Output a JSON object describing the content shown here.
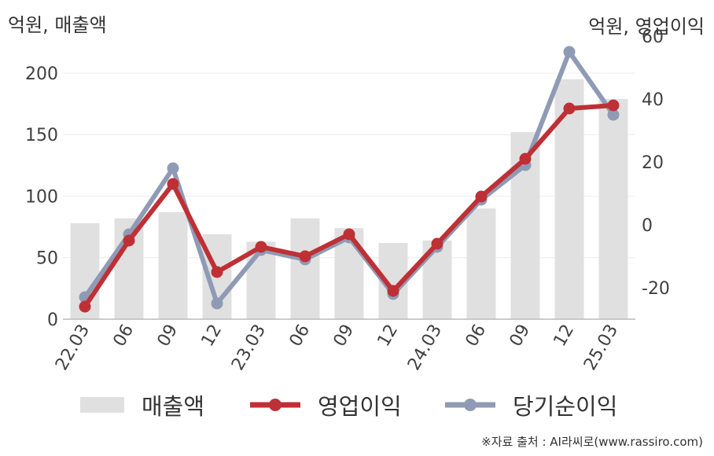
{
  "chart_data": {
    "type": "bar+line",
    "left_axis_title": "억원, 매출액",
    "right_axis_title": "억원, 영업이익",
    "categories": [
      "22.03",
      "06",
      "09",
      "12",
      "23.03",
      "06",
      "09",
      "12",
      "24.03",
      "06",
      "09",
      "12",
      "25.03"
    ],
    "left_axis": {
      "ylim": [
        0,
        230
      ],
      "ticks": [
        0,
        50,
        100,
        150,
        200
      ]
    },
    "right_axis": {
      "ylim": [
        -30,
        60
      ],
      "ticks": [
        -20,
        0,
        20,
        40,
        60
      ]
    },
    "series": [
      {
        "name": "매출액",
        "type": "bar",
        "axis": "left",
        "color": "#e0e0e0",
        "values": [
          78,
          82,
          87,
          69,
          63,
          82,
          74,
          62,
          64,
          90,
          152,
          195,
          179
        ]
      },
      {
        "name": "영업이익",
        "type": "line",
        "axis": "right",
        "color": "#be3035",
        "values": [
          -26,
          -5,
          13,
          -15,
          -7,
          -10,
          -3,
          -21,
          -6,
          9,
          21,
          37,
          38
        ]
      },
      {
        "name": "당기순이익",
        "type": "line",
        "axis": "right",
        "color": "#8f9bb5",
        "values": [
          -23,
          -3,
          18,
          -25,
          -8,
          -11,
          -4,
          -22,
          -7,
          8,
          19,
          55,
          35
        ]
      }
    ],
    "grid": true,
    "legend_position": "bottom"
  },
  "source": "※자료 출처 : AI라씨로(www.rassiro.com)"
}
